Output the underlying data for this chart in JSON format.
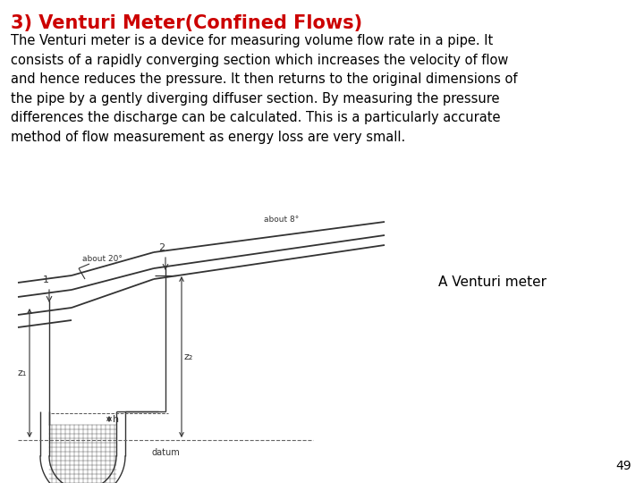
{
  "title": "3) Venturi Meter(Confined Flows)",
  "title_color": "#CC0000",
  "title_fontsize": 15,
  "body_text": "The Venturi meter is a device for measuring volume flow rate in a pipe. It\nconsists of a rapidly converging section which increases the velocity of flow\nand hence reduces the pressure. It then returns to the original dimensions of\nthe pipe by a gently diverging diffuser section. By measuring the pressure\ndifferences the discharge can be calculated. This is a particularly accurate\nmethod of flow measurement as energy loss are very small.",
  "body_fontsize": 10.5,
  "label_venturi": "A Venturi meter",
  "label_venturi_fontsize": 11,
  "page_number": "49",
  "bg_color": "#ffffff",
  "diagram_color": "#333333",
  "annotation_about_20": "about 20°",
  "annotation_about_8": "about 8°"
}
